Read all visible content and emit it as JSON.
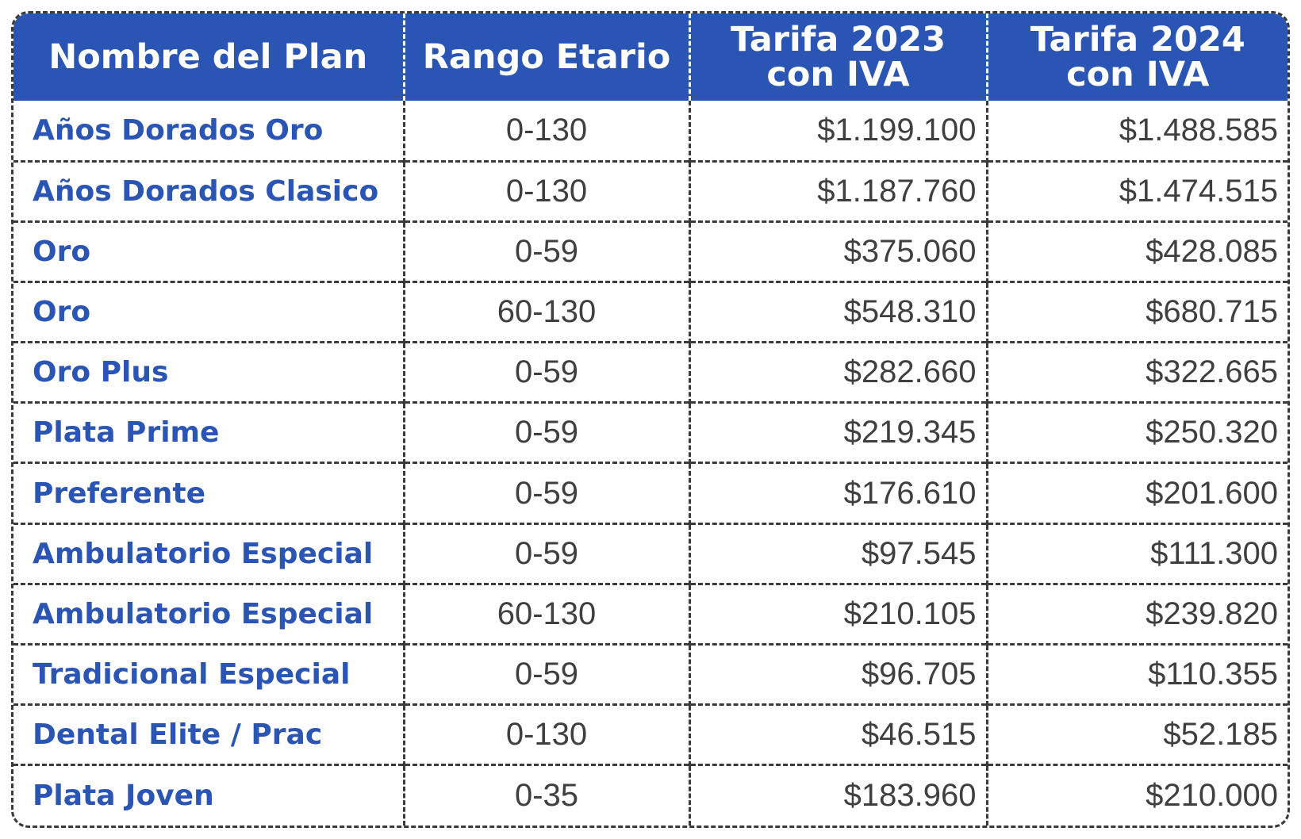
{
  "table": {
    "header_color": "#2a55b4",
    "columns": [
      "Nombre del Plan",
      "Rango Etario",
      "Tarifa 2023 con IVA",
      "Tarifa 2024 con IVA"
    ],
    "rows": [
      {
        "plan": "Años Dorados Oro",
        "range": "0-130",
        "tarifa_2023": "$1.199.100",
        "tarifa_2024": "$1.488.585"
      },
      {
        "plan": "Años Dorados Clasico",
        "range": "0-130",
        "tarifa_2023": "$1.187.760",
        "tarifa_2024": "$1.474.515"
      },
      {
        "plan": "Oro",
        "range": "0-59",
        "tarifa_2023": "$375.060",
        "tarifa_2024": "$428.085"
      },
      {
        "plan": "Oro",
        "range": "60-130",
        "tarifa_2023": "$548.310",
        "tarifa_2024": "$680.715"
      },
      {
        "plan": "Oro Plus",
        "range": "0-59",
        "tarifa_2023": "$282.660",
        "tarifa_2024": "$322.665"
      },
      {
        "plan": "Plata Prime",
        "range": "0-59",
        "tarifa_2023": "$219.345",
        "tarifa_2024": "$250.320"
      },
      {
        "plan": "Preferente",
        "range": "0-59",
        "tarifa_2023": "$176.610",
        "tarifa_2024": "$201.600"
      },
      {
        "plan": "Ambulatorio Especial",
        "range": "0-59",
        "tarifa_2023": "$97.545",
        "tarifa_2024": "$111.300"
      },
      {
        "plan": "Ambulatorio Especial",
        "range": "60-130",
        "tarifa_2023": "$210.105",
        "tarifa_2024": "$239.820"
      },
      {
        "plan": "Tradicional Especial",
        "range": "0-59",
        "tarifa_2023": "$96.705",
        "tarifa_2024": "$110.355"
      },
      {
        "plan": "Dental Elite / Prac",
        "range": "0-130",
        "tarifa_2023": "$46.515",
        "tarifa_2024": "$52.185"
      },
      {
        "plan": "Plata Joven",
        "range": "0-35",
        "tarifa_2023": "$183.960",
        "tarifa_2024": "$210.000"
      }
    ]
  }
}
